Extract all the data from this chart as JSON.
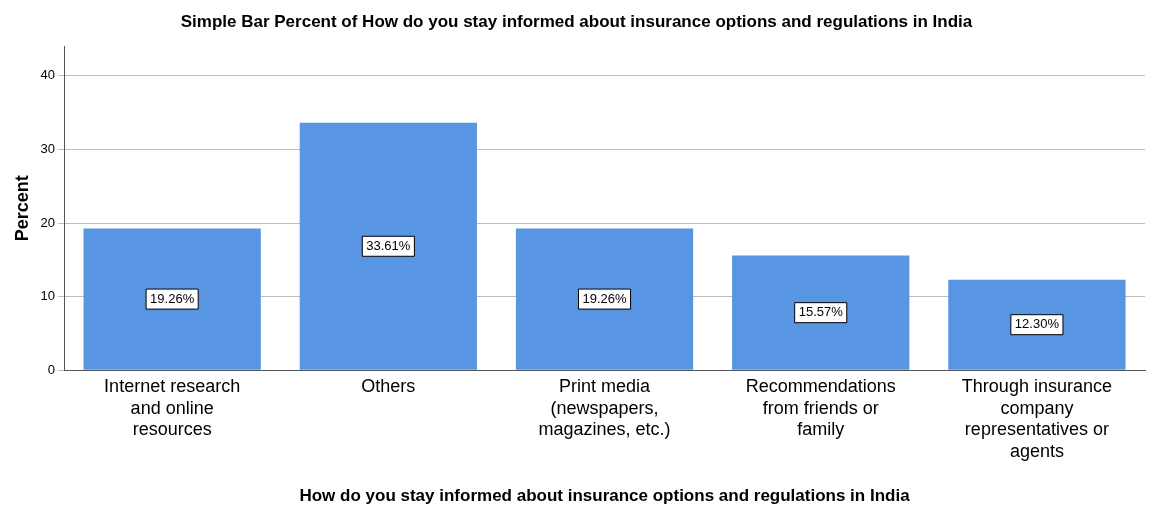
{
  "chart_data": {
    "type": "bar",
    "title": "Simple Bar Percent of How do you stay informed about insurance options and regulations in India",
    "xlabel": "How do you stay informed about insurance options and regulations in India",
    "ylabel": "Percent",
    "categories": [
      "Internet research and online resources",
      "Others",
      "Print media (newspapers, magazines, etc.)",
      "Recommendations from friends or family",
      "Through insurance company representatives or agents"
    ],
    "values": [
      19.26,
      33.61,
      19.26,
      15.57,
      12.3
    ],
    "value_labels": [
      "19.26%",
      "33.61%",
      "19.26%",
      "15.57%",
      "12.30%"
    ],
    "color": "#5895e3",
    "ylim": [
      0,
      44
    ],
    "yticks": [
      0,
      10,
      20,
      30,
      40
    ],
    "grid": "y",
    "legend": false
  }
}
